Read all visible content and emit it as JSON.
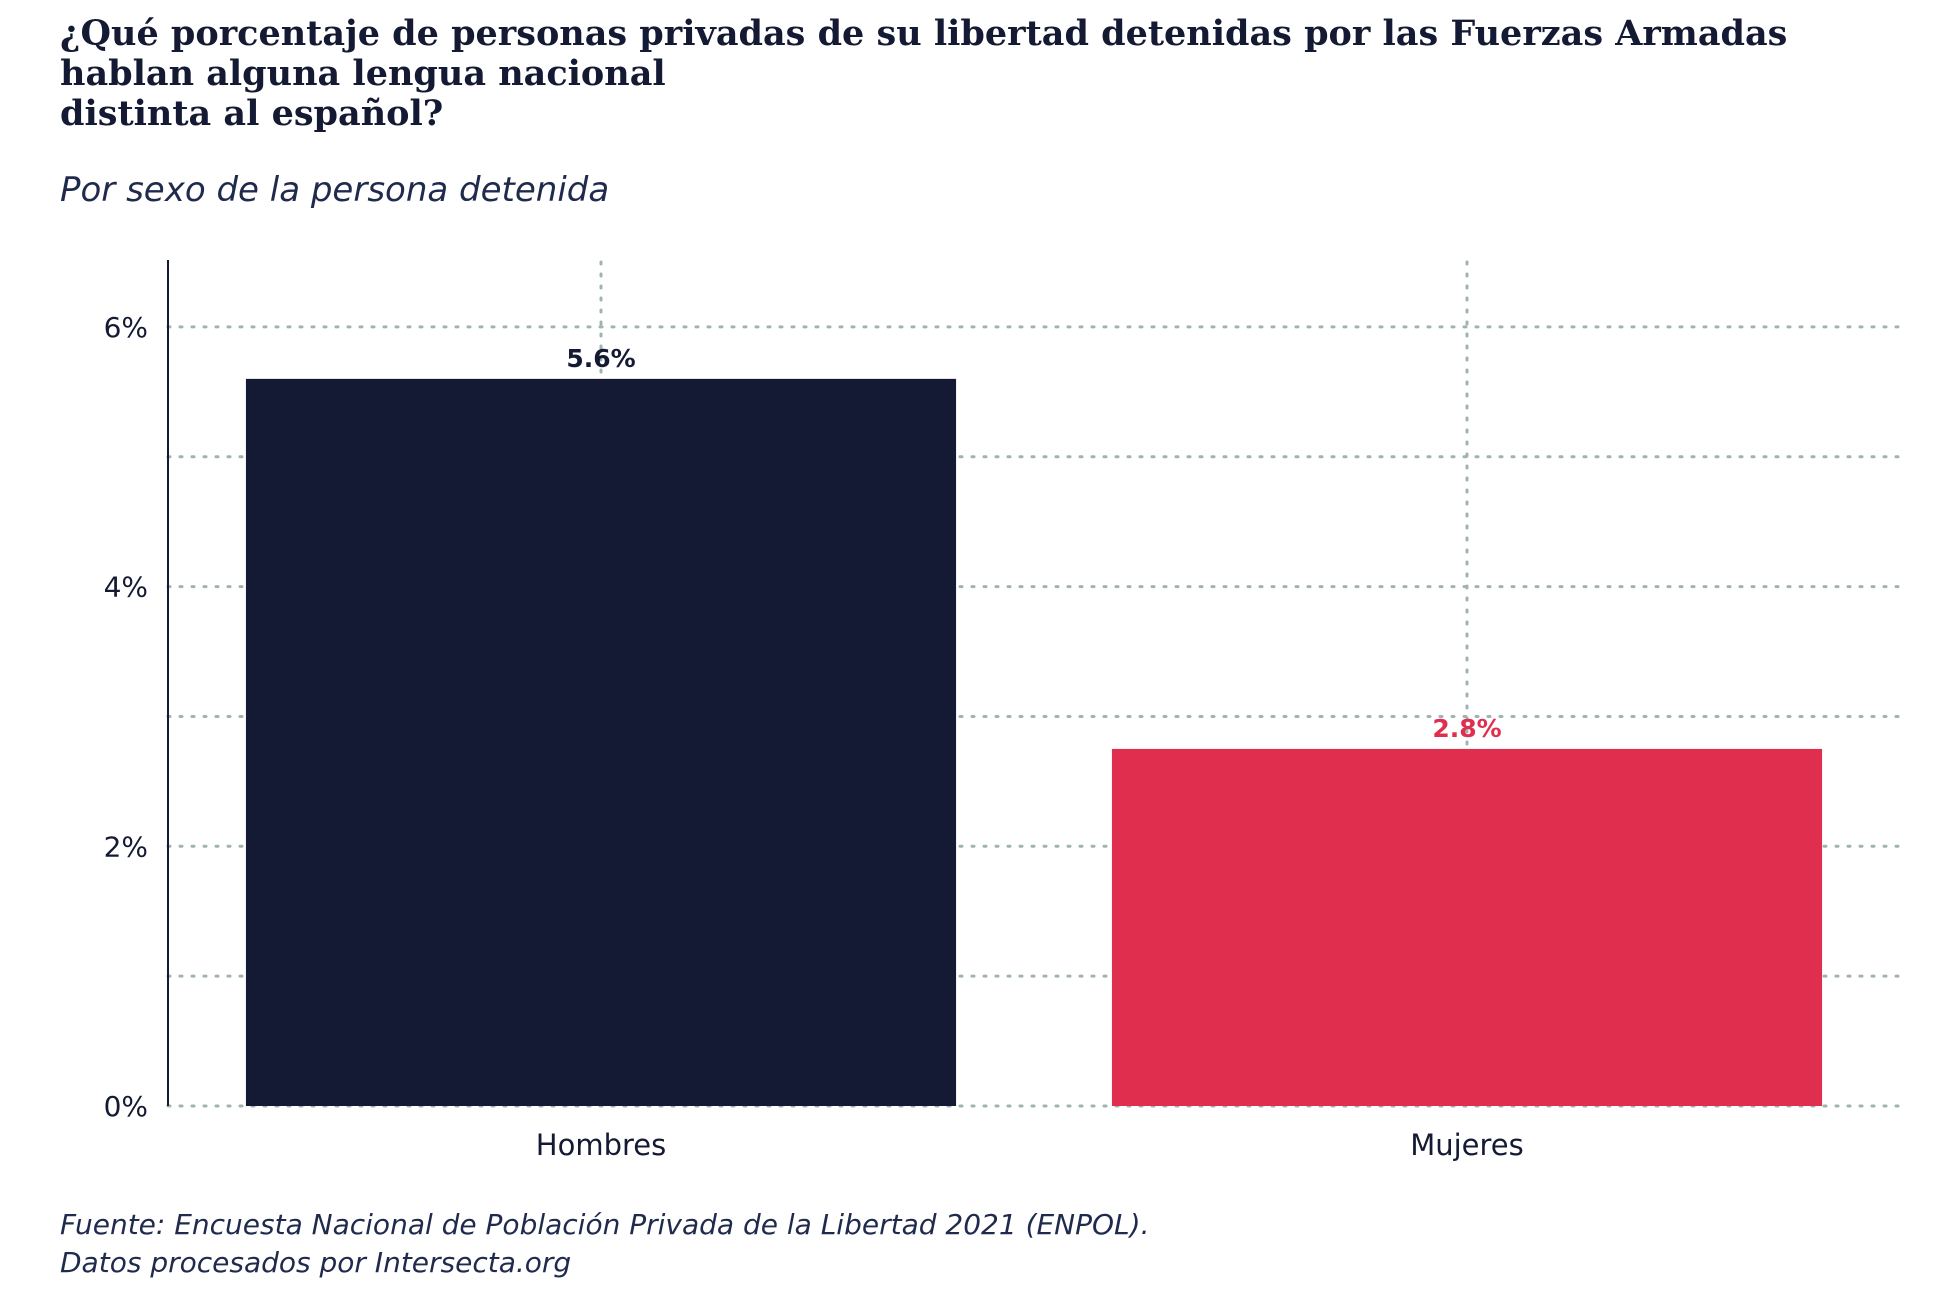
{
  "title_lines": [
    "¿Qué porcentaje de personas privadas de su libertad detenidas por las Fuerzas Armadas",
    "hablan alguna lengua nacional",
    "distinta al español?"
  ],
  "subtitle": "Por sexo de la persona detenida",
  "caption_lines": [
    "Fuente: Encuesta Nacional de Población Privada de la Libertad 2021 (ENPOL).",
    "Datos procesados por Intersecta.org"
  ],
  "colors": {
    "text": "#141a33",
    "grid": "#9fb3b0",
    "axis": "#141a33"
  },
  "chart_data": {
    "type": "bar",
    "categories": [
      "Hombres",
      "Mujeres"
    ],
    "values": [
      5.6,
      2.75
    ],
    "value_labels": [
      "5.6%",
      "2.8%"
    ],
    "bar_colors": [
      "#141a33",
      "#e02e4f"
    ],
    "label_colors": [
      "#141a33",
      "#e02e4f"
    ],
    "ylim": [
      0,
      6.5
    ],
    "yticks": [
      0,
      2,
      4,
      6
    ],
    "ytick_labels": [
      "0%",
      "2%",
      "4%",
      "6%"
    ],
    "minor_gridlines": [
      1,
      3,
      5
    ],
    "grid": true,
    "xlabel": "",
    "ylabel": ""
  }
}
